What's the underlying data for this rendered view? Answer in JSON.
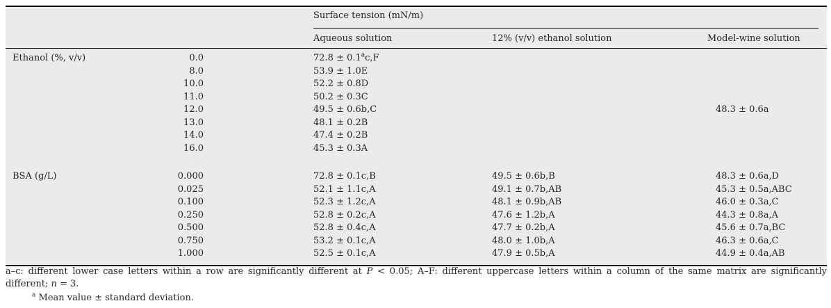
{
  "table": {
    "span_header": "Surface tension (mN/m)",
    "columns": [
      "Aqueous solution",
      "12% (v/v) ethanol solution",
      "Model-wine solution"
    ],
    "sections": [
      {
        "label": "Ethanol (%, v/v)",
        "rows": [
          {
            "conc": "0.0",
            "aqueous": [
              "72.8 ± 0.1",
              {
                "sup": "a"
              },
              "c,F"
            ],
            "ethanol12": "",
            "modelwine": ""
          },
          {
            "conc": "8.0",
            "aqueous": "53.9 ± 1.0E",
            "ethanol12": "",
            "modelwine": ""
          },
          {
            "conc": "10.0",
            "aqueous": "52.2 ± 0.8D",
            "ethanol12": "",
            "modelwine": ""
          },
          {
            "conc": "11.0",
            "aqueous": "50.2 ± 0.3C",
            "ethanol12": "",
            "modelwine": ""
          },
          {
            "conc": "12.0",
            "aqueous": "49.5 ± 0.6b,C",
            "ethanol12": "",
            "modelwine": "48.3 ± 0.6a"
          },
          {
            "conc": "13.0",
            "aqueous": "48.1 ± 0.2B",
            "ethanol12": "",
            "modelwine": ""
          },
          {
            "conc": "14.0",
            "aqueous": "47.4 ± 0.2B",
            "ethanol12": "",
            "modelwine": ""
          },
          {
            "conc": "16.0",
            "aqueous": "45.3 ± 0.3A",
            "ethanol12": "",
            "modelwine": ""
          }
        ]
      },
      {
        "label": "BSA (g/L)",
        "rows": [
          {
            "conc": "0.000",
            "aqueous": "72.8 ± 0.1c,B",
            "ethanol12": "49.5 ± 0.6b,B",
            "modelwine": "48.3 ± 0.6a,D"
          },
          {
            "conc": "0.025",
            "aqueous": "52.1 ± 1.1c,A",
            "ethanol12": "49.1 ± 0.7b,AB",
            "modelwine": "45.3 ± 0.5a,ABC"
          },
          {
            "conc": "0.100",
            "aqueous": "52.3 ± 1.2c,A",
            "ethanol12": "48.1 ± 0.9b,AB",
            "modelwine": "46.0 ± 0.3a,C"
          },
          {
            "conc": "0.250",
            "aqueous": "52.8 ± 0.2c,A",
            "ethanol12": "47.6 ± 1.2b,A",
            "modelwine": "44.3 ± 0.8a,A"
          },
          {
            "conc": "0.500",
            "aqueous": "52.8 ± 0.4c,A",
            "ethanol12": "47.7 ± 0.2b,A",
            "modelwine": "45.6 ± 0.7a,BC"
          },
          {
            "conc": "0.750",
            "aqueous": "53.2 ± 0.1c,A",
            "ethanol12": "48.0 ± 1.0b,A",
            "modelwine": "46.3 ± 0.6a,C"
          },
          {
            "conc": "1.000",
            "aqueous": "52.5 ± 0.1c,A",
            "ethanol12": "47.9 ± 0.5b,A",
            "modelwine": "44.9 ± 0.4a,AB"
          }
        ]
      }
    ]
  },
  "footnotes": {
    "note1_line1_parts": [
      "a–c: different lower case letters within a row are significantly different at ",
      "P",
      " < 0.05; A–F: different uppercase letters within a column of the same matrix are significantly"
    ],
    "note1_line2_parts": [
      "different; ",
      "n",
      " = 3."
    ],
    "note2_marker": "a",
    "note2_text": " Mean value ± standard deviation."
  },
  "colors": {
    "table_background": "#ebece9",
    "rule": "#0b0b0b",
    "text": "#232429"
  }
}
